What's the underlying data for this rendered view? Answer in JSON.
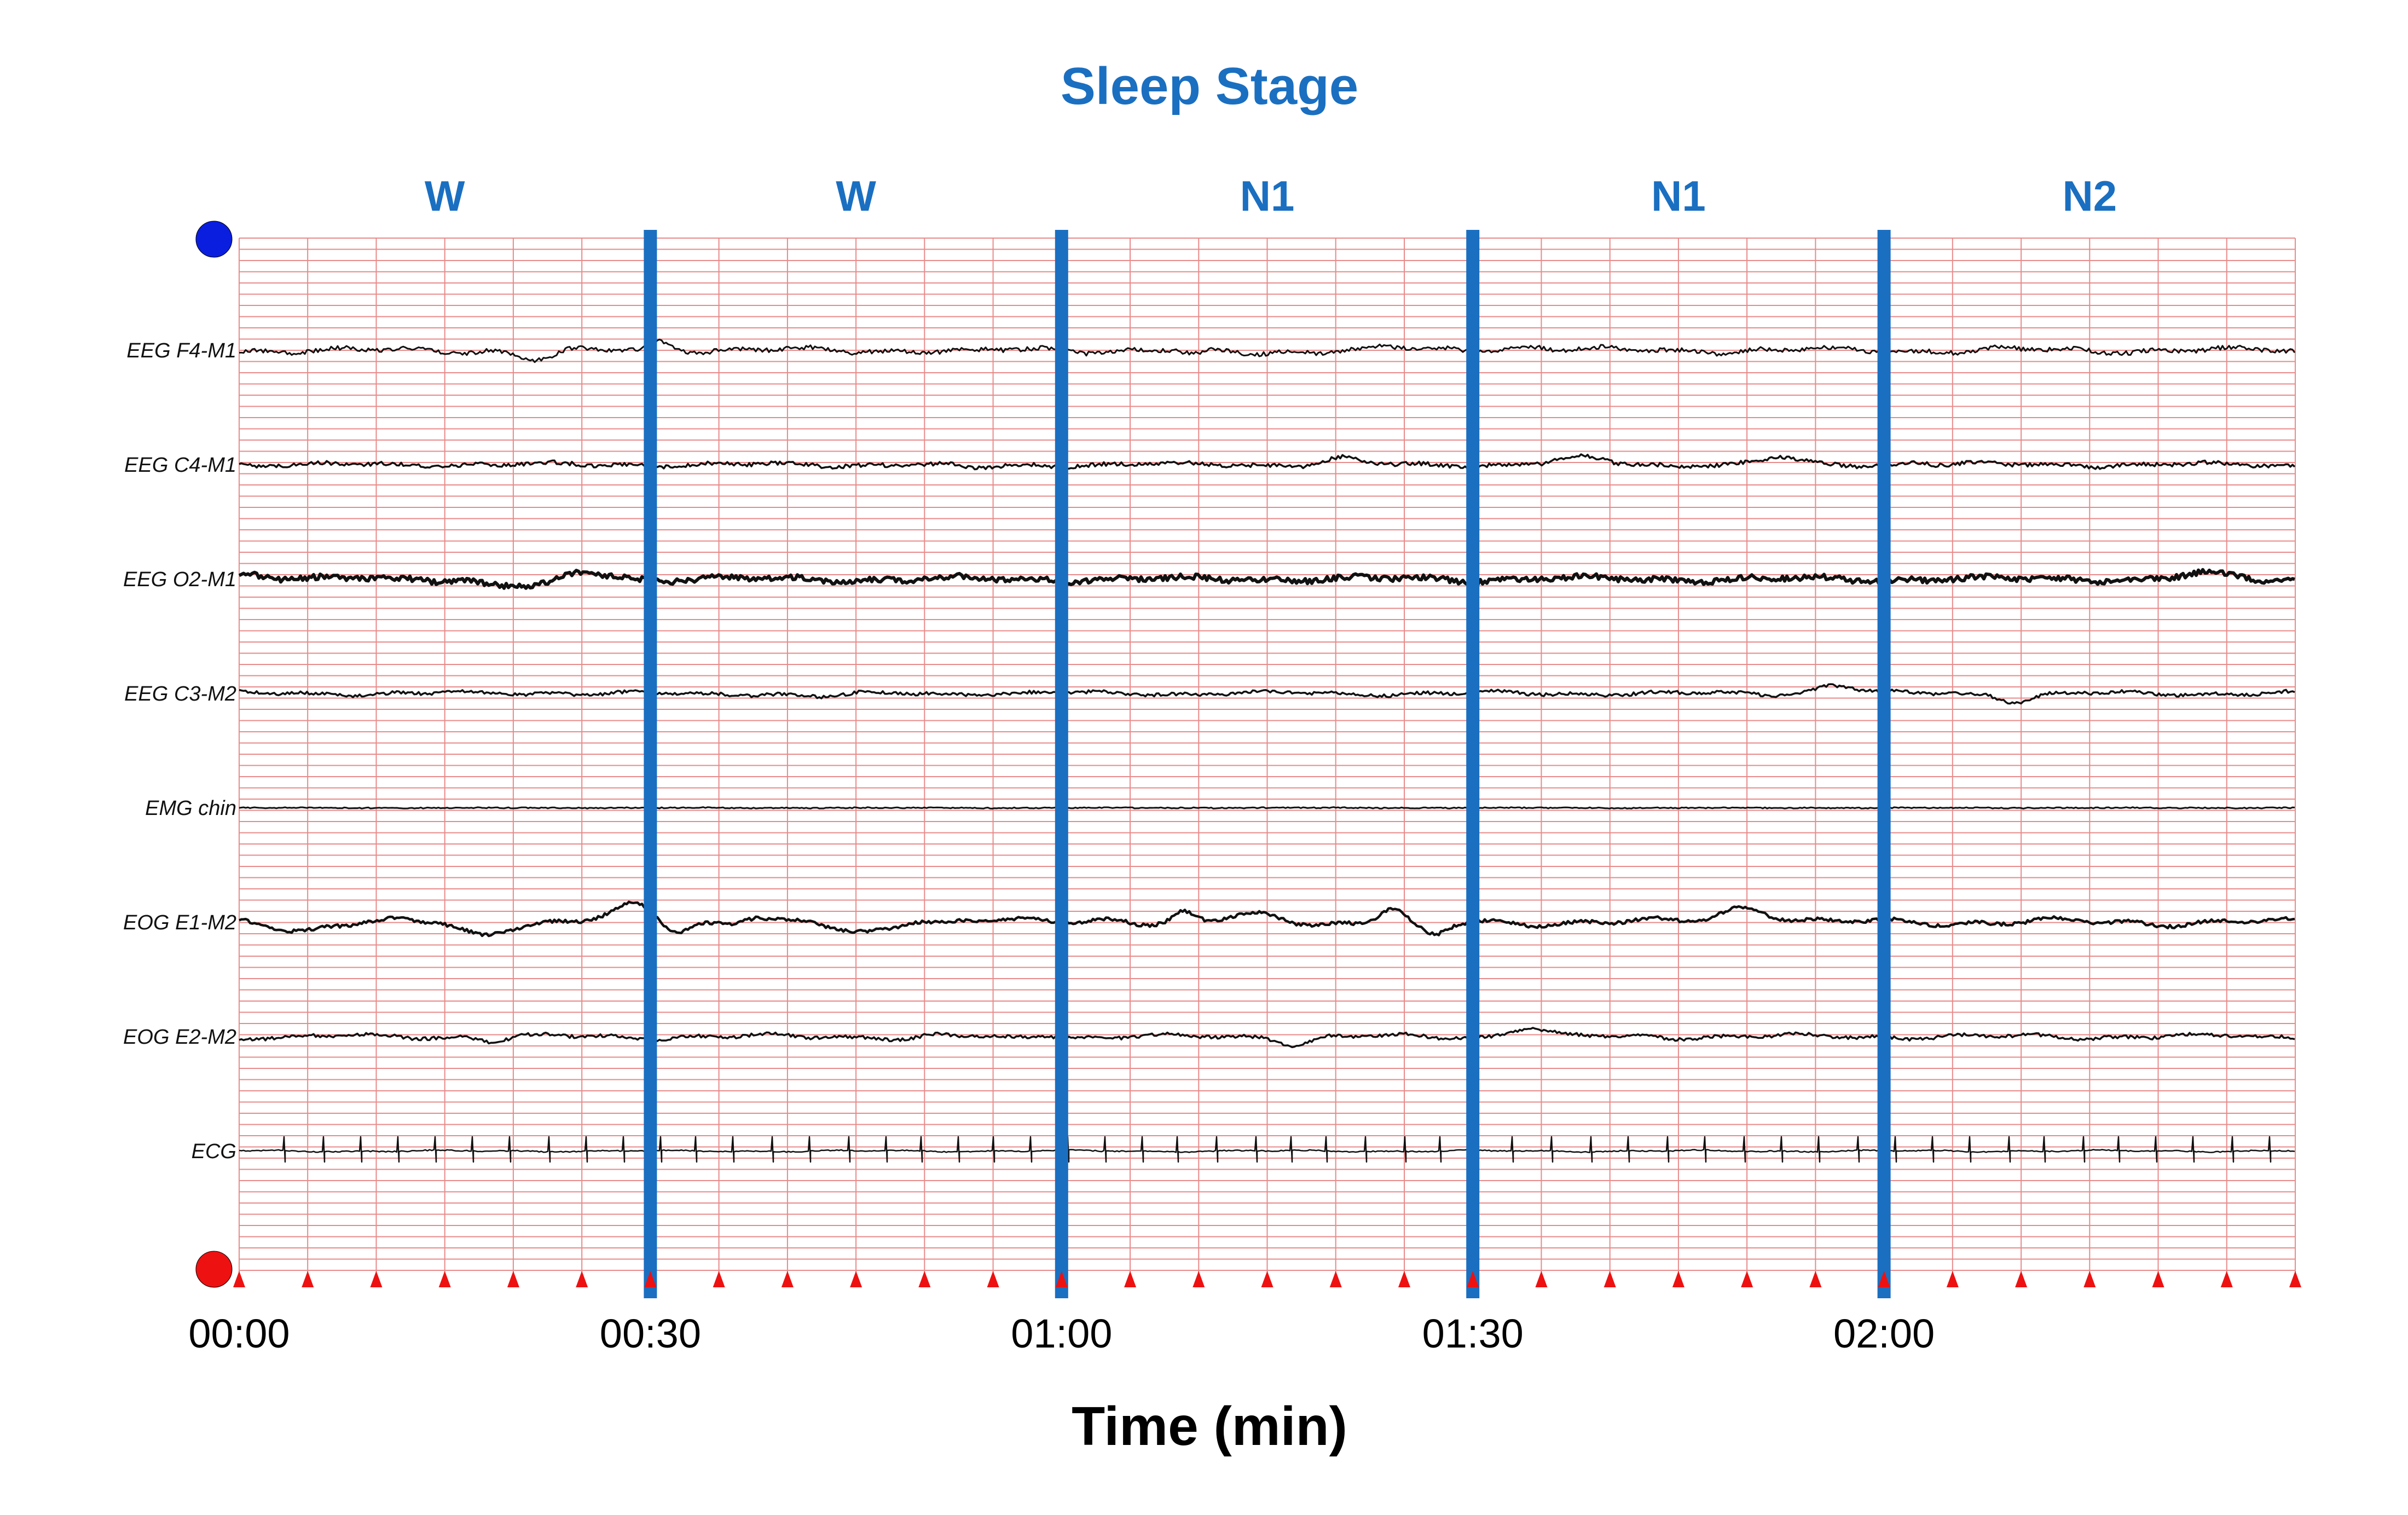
{
  "chart_data": {
    "type": "line",
    "title": "Sleep Stage",
    "xlabel": "Time (min)",
    "ylabel": "",
    "xlim": [
      0,
      150
    ],
    "x_ticks": [
      "00:00",
      "00:30",
      "01:00",
      "01:30",
      "02:00"
    ],
    "epoch_length_s": 30,
    "stages": [
      "W",
      "W",
      "N1",
      "N1",
      "N2"
    ],
    "channels": [
      "EEG F4-M1",
      "EEG C4-M1",
      "EEG O2-M1",
      "EEG C3-M2",
      "EMG chin",
      "EOG E1-M2",
      "EOG E2-M2",
      "ECG"
    ],
    "grid": true,
    "colors": {
      "stage": "#1a6fc1",
      "grid": "#e88a8a",
      "trace": "#111111",
      "top_marker": "#0a1ee0",
      "bottom_marker": "#ee1111",
      "tick_marker": "#ee1111"
    }
  }
}
